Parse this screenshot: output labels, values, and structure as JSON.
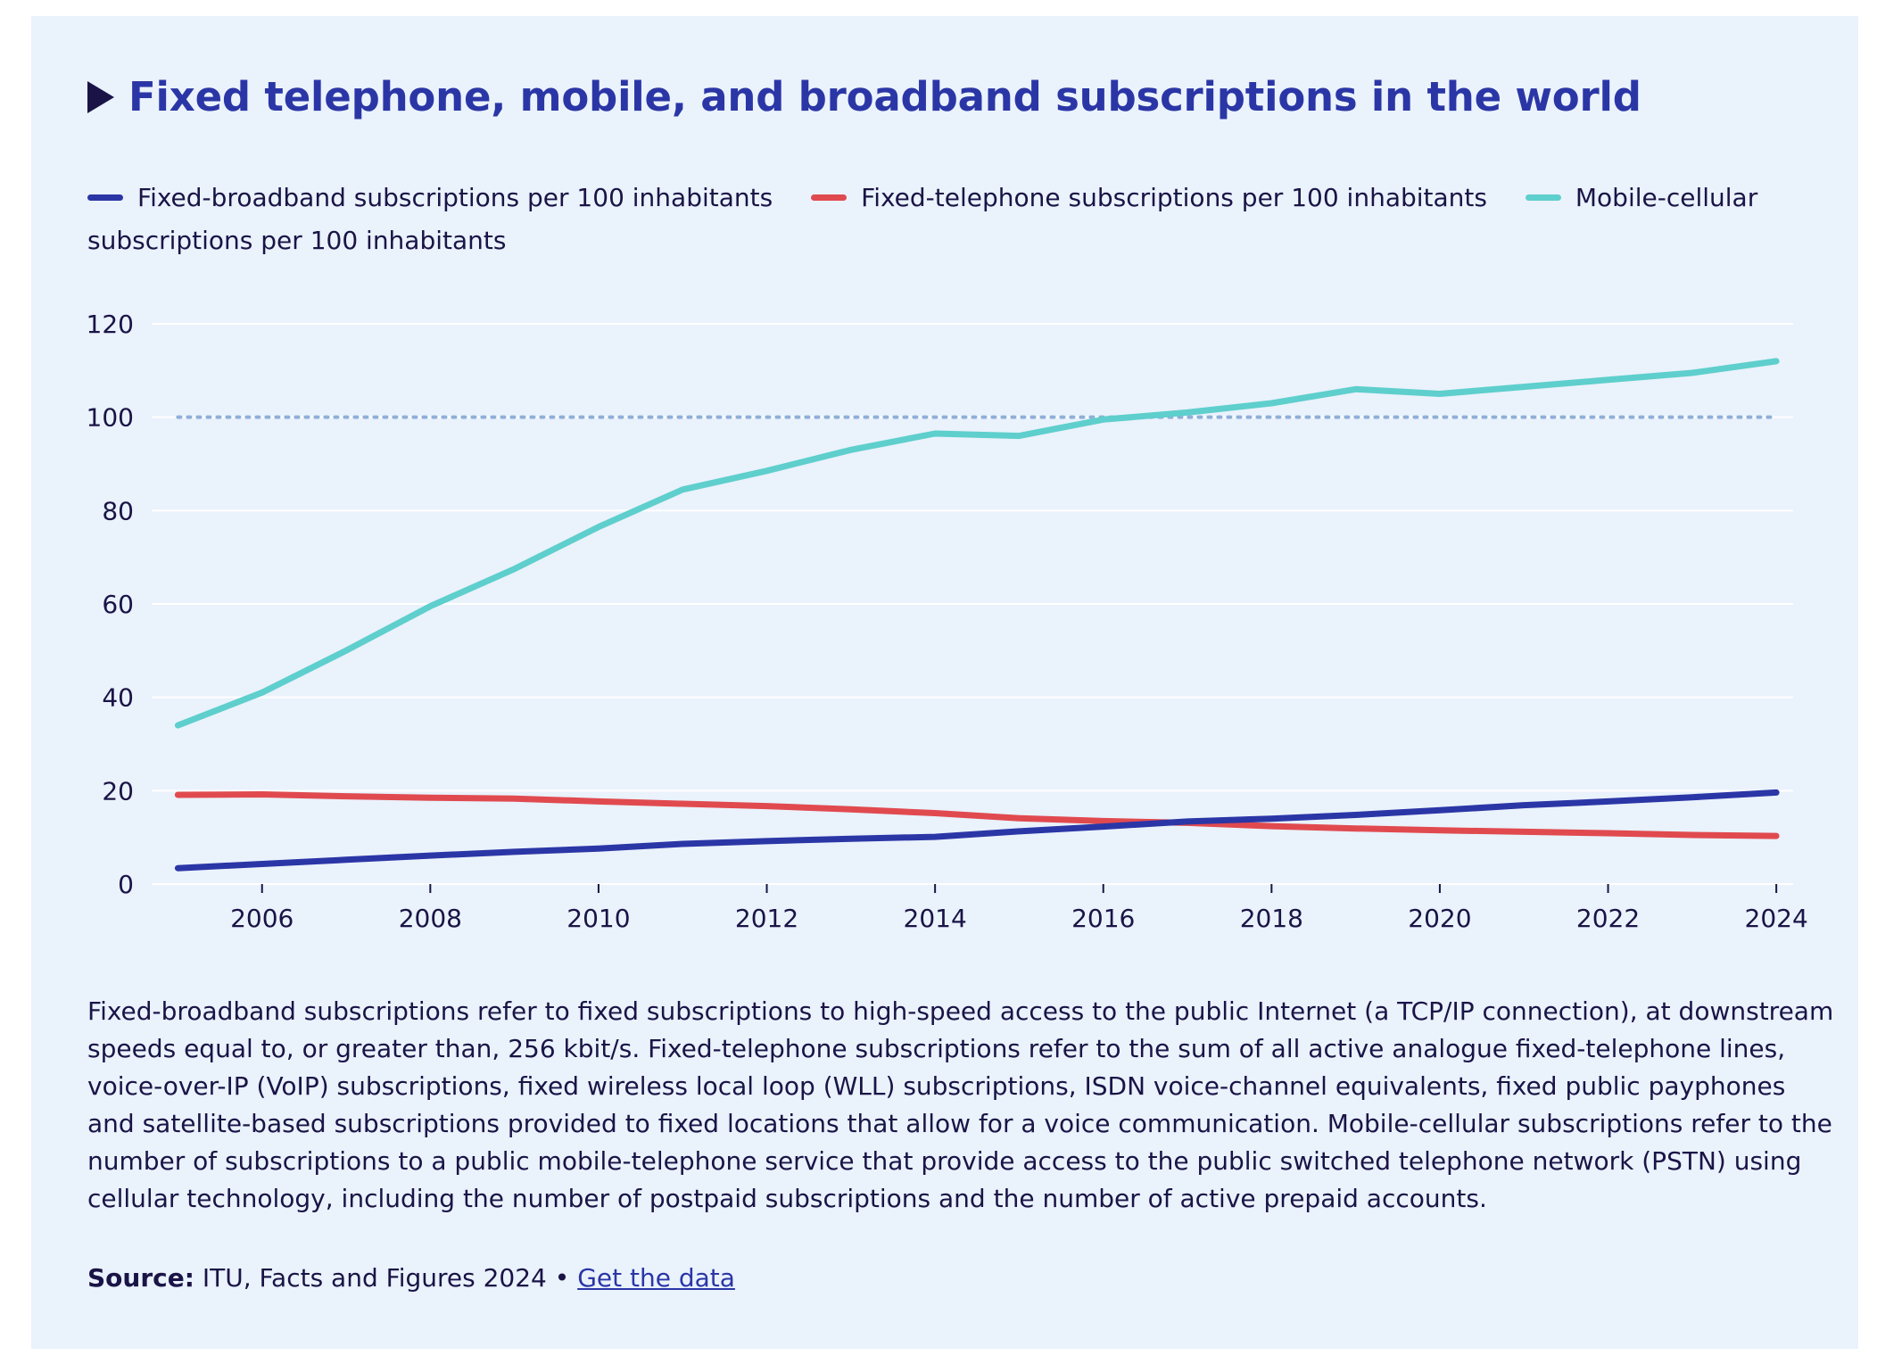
{
  "title": "Fixed telephone, mobile, and broadband subscriptions in the world",
  "legend": [
    {
      "label": "Fixed-broadband subscriptions per 100 inhabitants",
      "color": "#2b36a6"
    },
    {
      "label": "Fixed-telephone subscriptions per 100 inhabitants",
      "color": "#e04a4f"
    },
    {
      "label": "Mobile-cellular subscriptions per 100 inhabitants",
      "color": "#5ecfcc"
    }
  ],
  "note": "Fixed-broadband subscriptions refer to fixed subscriptions to high-speed access to the public Internet (a TCP/IP connection), at downstream speeds equal to, or greater than, 256 kbit/s. Fixed-telephone subscriptions refer to the sum of all active analogue fixed-telephone lines, voice-over-IP (VoIP) subscriptions, fixed wireless local loop (WLL) subscriptions, ISDN voice-channel equivalents, fixed public payphones and satellite-based subscriptions provided to fixed locations that allow for a voice communication. Mobile-cellular subscriptions refer to the number of subscriptions to a public mobile-telephone service that provide access to the public switched telephone network (PSTN) using cellular technology, including the number of postpaid subscriptions and the number of active prepaid accounts.",
  "source": {
    "label": "Source:",
    "text": "ITU, Facts and Figures 2024",
    "separator": "•",
    "link": "Get the data"
  },
  "colors": {
    "background": "#eaf2fc",
    "title": "#2b36a6",
    "text": "#1a1446",
    "grid": "#ffffff",
    "reference_line": "#8fb0d8"
  },
  "chart_data": {
    "type": "line",
    "x": [
      2005,
      2006,
      2007,
      2008,
      2009,
      2010,
      2011,
      2012,
      2013,
      2014,
      2015,
      2016,
      2017,
      2018,
      2019,
      2020,
      2021,
      2022,
      2023,
      2024
    ],
    "xticks": [
      2006,
      2008,
      2010,
      2012,
      2014,
      2016,
      2018,
      2020,
      2022,
      2024
    ],
    "yticks": [
      0,
      20,
      40,
      60,
      80,
      100,
      120
    ],
    "xlim": [
      2004.9,
      2024.2
    ],
    "ylim": [
      0,
      120
    ],
    "reference_line": {
      "y": 100,
      "style": "dotted"
    },
    "grid": true,
    "legend_position": "top",
    "series": [
      {
        "name": "Fixed-broadband subscriptions per 100 inhabitants",
        "color": "#2b36a6",
        "values": [
          3.4,
          4.3,
          5.2,
          6.1,
          6.9,
          7.6,
          8.6,
          9.2,
          9.7,
          10.1,
          11.3,
          12.3,
          13.4,
          14.0,
          14.8,
          15.8,
          16.9,
          17.7,
          18.6,
          19.6
        ]
      },
      {
        "name": "Fixed-telephone subscriptions per 100 inhabitants",
        "color": "#e04a4f",
        "values": [
          19.1,
          19.2,
          18.8,
          18.5,
          18.3,
          17.7,
          17.2,
          16.7,
          16.0,
          15.2,
          14.1,
          13.5,
          13.1,
          12.4,
          11.9,
          11.5,
          11.2,
          10.9,
          10.5,
          10.3
        ]
      },
      {
        "name": "Mobile-cellular subscriptions per 100 inhabitants",
        "color": "#5ecfcc",
        "values": [
          34,
          41,
          50,
          59.5,
          67.5,
          76.5,
          84.5,
          88.5,
          93,
          96.5,
          96,
          99.5,
          101,
          103,
          106,
          105,
          106.5,
          108,
          109.5,
          112
        ]
      }
    ]
  }
}
